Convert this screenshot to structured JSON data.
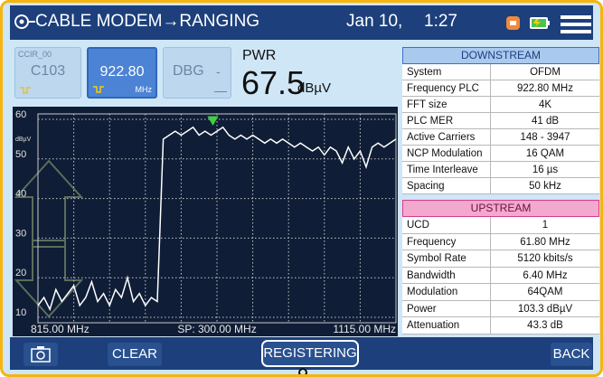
{
  "header": {
    "title": "CABLE MODEM→RANGING",
    "date": "Jan 10,",
    "time": "1:27"
  },
  "buttons": [
    {
      "label": "CCIR_00",
      "value": "C103"
    },
    {
      "value": "922.80",
      "unit": "MHz"
    },
    {
      "value": "DBG",
      "unit": "-"
    }
  ],
  "power": {
    "label": "PWR",
    "value": "67.5",
    "unit": "dBµV"
  },
  "downstream": {
    "title": "DOWNSTREAM",
    "rows": [
      [
        "System",
        "OFDM"
      ],
      [
        "Frequency PLC",
        "922.80 MHz"
      ],
      [
        "FFT size",
        "4K"
      ],
      [
        "PLC MER",
        "41 dB"
      ],
      [
        "Active Carriers",
        "148 - 3947"
      ],
      [
        "NCP Modulation",
        "16 QAM"
      ],
      [
        "Time Interleave",
        "16 µs"
      ],
      [
        "Spacing",
        "50 kHz"
      ]
    ]
  },
  "upstream": {
    "title": "UPSTREAM",
    "rows": [
      [
        "UCD",
        "1"
      ],
      [
        "Frequency",
        "61.80 MHz"
      ],
      [
        "Symbol Rate",
        "5120 kbits/s"
      ],
      [
        "Bandwidth",
        "6.40 MHz"
      ],
      [
        "Modulation",
        "64QAM"
      ],
      [
        "Power",
        "103.3 dBµV"
      ],
      [
        "Attenuation",
        "43.3 dB"
      ]
    ]
  },
  "chart_data": {
    "type": "line",
    "y_unit": "dBµV",
    "x_start_label": "815.00 MHz",
    "span_label": "SP: 300.00 MHz",
    "x_end_label": "1115.00 MHz",
    "xlim": [
      815,
      1115
    ],
    "xticks": [
      815,
      845,
      875,
      905,
      935,
      965,
      995,
      1025,
      1055,
      1085,
      1115
    ],
    "ylim": [
      10,
      60
    ],
    "yticks": [
      10,
      20,
      30,
      40,
      50,
      60
    ],
    "grid": true,
    "color": "#ffffff",
    "x": [
      815,
      820,
      825,
      830,
      835,
      840,
      845,
      850,
      855,
      860,
      865,
      870,
      875,
      880,
      885,
      890,
      895,
      900,
      905,
      910,
      915,
      920,
      925,
      930,
      935,
      940,
      945,
      950,
      955,
      960,
      965,
      970,
      975,
      980,
      985,
      990,
      995,
      1000,
      1005,
      1010,
      1015,
      1020,
      1025,
      1030,
      1035,
      1040,
      1045,
      1050,
      1055,
      1060,
      1065,
      1070,
      1075,
      1080,
      1085,
      1090,
      1095,
      1100,
      1105,
      1110,
      1115
    ],
    "values": [
      13,
      15,
      12,
      17,
      14,
      16,
      18,
      13,
      15,
      19,
      14,
      16,
      13,
      17,
      15,
      20,
      14,
      16,
      13,
      15,
      14,
      55,
      56,
      57,
      56,
      57,
      58,
      56,
      57,
      56,
      57,
      58,
      56,
      55,
      56,
      55,
      56,
      55,
      54,
      55,
      54,
      55,
      54,
      53,
      54,
      53,
      52,
      53,
      51,
      53,
      52,
      49,
      53,
      50,
      52,
      48,
      53,
      54,
      53,
      54,
      55
    ]
  },
  "toolbar": {
    "clear": "CLEAR",
    "status": "REGISTERING",
    "back": "BACK"
  }
}
